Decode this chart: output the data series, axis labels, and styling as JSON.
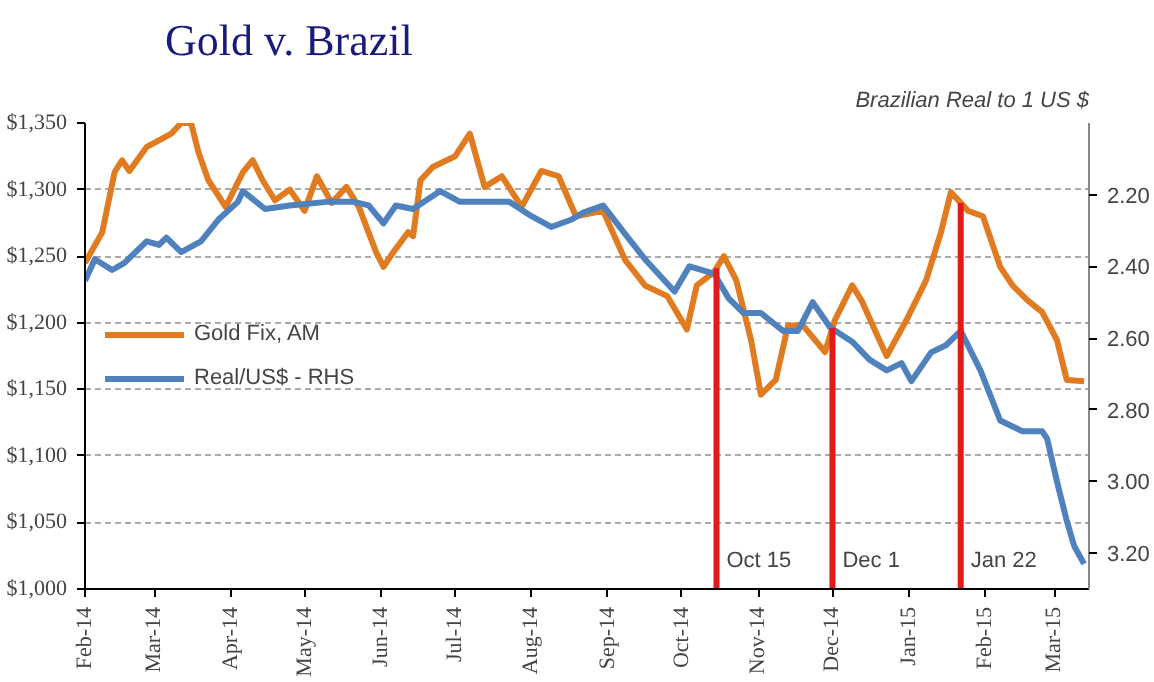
{
  "chart_data": {
    "type": "line",
    "title": "Gold v. Brazil",
    "y2label": "Brazilian Real to 1 US $",
    "series": [
      {
        "name": "Gold Fix, AM",
        "color": "#e07b1f",
        "x": [
          "2014-02-01",
          "2014-02-08",
          "2014-02-13",
          "2014-02-16",
          "2014-02-19",
          "2014-02-26",
          "2014-03-03",
          "2014-03-08",
          "2014-03-12",
          "2014-03-16",
          "2014-03-19",
          "2014-03-23",
          "2014-03-30",
          "2014-04-06",
          "2014-04-10",
          "2014-04-14",
          "2014-04-19",
          "2014-04-25",
          "2014-05-01",
          "2014-05-06",
          "2014-05-12",
          "2014-05-18",
          "2014-05-23",
          "2014-05-30",
          "2014-06-02",
          "2014-06-06",
          "2014-06-12",
          "2014-06-14",
          "2014-06-17",
          "2014-06-22",
          "2014-07-01",
          "2014-07-07",
          "2014-07-13",
          "2014-07-20",
          "2014-07-28",
          "2014-08-05",
          "2014-08-12",
          "2014-08-19",
          "2014-08-30",
          "2014-09-08",
          "2014-09-16",
          "2014-09-25",
          "2014-10-03",
          "2014-10-07",
          "2014-10-14",
          "2014-10-18",
          "2014-10-23",
          "2014-10-29",
          "2014-11-02",
          "2014-11-08",
          "2014-11-13",
          "2014-11-19",
          "2014-11-28",
          "2014-12-02",
          "2014-12-09",
          "2014-12-13",
          "2014-12-20",
          "2014-12-23",
          "2014-12-31",
          "2015-01-08",
          "2015-01-14",
          "2015-01-18",
          "2015-01-25",
          "2015-01-31",
          "2015-02-07",
          "2015-02-12",
          "2015-02-18",
          "2015-02-24",
          "2015-03-02",
          "2015-03-06",
          "2015-03-13"
        ],
        "values": [
          1245,
          1268,
          1313,
          1322,
          1314,
          1332,
          1337,
          1342,
          1350,
          1350,
          1328,
          1307,
          1287,
          1313,
          1322,
          1307,
          1292,
          1300,
          1284,
          1310,
          1290,
          1302,
          1287,
          1253,
          1242,
          1253,
          1268,
          1265,
          1307,
          1317,
          1325,
          1342,
          1302,
          1310,
          1287,
          1314,
          1310,
          1280,
          1284,
          1247,
          1228,
          1220,
          1195,
          1228,
          1238,
          1250,
          1232,
          1187,
          1146,
          1157,
          1198,
          1198,
          1178,
          1202,
          1228,
          1216,
          1187,
          1175,
          1202,
          1232,
          1268,
          1298,
          1284,
          1280,
          1242,
          1228,
          1217,
          1208,
          1187,
          1157,
          1156
        ]
      },
      {
        "name": "Real/US$ - RHS",
        "color": "#4f81bd",
        "axis": "y2",
        "x": [
          "2014-02-01",
          "2014-02-05",
          "2014-02-12",
          "2014-02-17",
          "2014-02-26",
          "2014-03-03",
          "2014-03-06",
          "2014-03-12",
          "2014-03-20",
          "2014-03-27",
          "2014-04-04",
          "2014-04-06",
          "2014-04-15",
          "2014-04-25",
          "2014-05-10",
          "2014-05-21",
          "2014-05-27",
          "2014-06-02",
          "2014-06-07",
          "2014-06-14",
          "2014-06-25",
          "2014-07-03",
          "2014-07-15",
          "2014-07-23",
          "2014-08-01",
          "2014-08-09",
          "2014-08-17",
          "2014-08-22",
          "2014-08-30",
          "2014-09-08",
          "2014-09-16",
          "2014-09-28",
          "2014-10-04",
          "2014-10-14",
          "2014-10-20",
          "2014-10-26",
          "2014-11-02",
          "2014-11-11",
          "2014-11-17",
          "2014-11-23",
          "2014-11-30",
          "2014-12-09",
          "2014-12-16",
          "2014-12-23",
          "2014-12-29",
          "2015-01-02",
          "2015-01-10",
          "2015-01-16",
          "2015-01-22",
          "2015-01-30",
          "2015-02-07",
          "2015-02-16",
          "2015-02-24",
          "2015-02-26",
          "2015-03-02",
          "2015-03-06",
          "2015-03-09",
          "2015-03-13"
        ],
        "values": [
          2.44,
          2.38,
          2.41,
          2.39,
          2.33,
          2.34,
          2.32,
          2.36,
          2.33,
          2.27,
          2.22,
          2.19,
          2.24,
          2.23,
          2.22,
          2.22,
          2.23,
          2.28,
          2.23,
          2.24,
          2.19,
          2.22,
          2.22,
          2.22,
          2.26,
          2.29,
          2.27,
          2.25,
          2.23,
          2.31,
          2.38,
          2.47,
          2.4,
          2.42,
          2.49,
          2.53,
          2.53,
          2.58,
          2.58,
          2.5,
          2.57,
          2.61,
          2.66,
          2.69,
          2.67,
          2.72,
          2.64,
          2.62,
          2.58,
          2.69,
          2.83,
          2.86,
          2.86,
          2.88,
          3.0,
          3.11,
          3.18,
          3.23
        ]
      }
    ],
    "xlim": [
      "2014-02-01",
      "2015-03-15"
    ],
    "xticks": [
      {
        "value": "2014-02-01",
        "label": "Feb-14"
      },
      {
        "value": "2014-03-01",
        "label": "Mar-14"
      },
      {
        "value": "2014-04-01",
        "label": "Apr-14"
      },
      {
        "value": "2014-05-01",
        "label": "May-14"
      },
      {
        "value": "2014-06-01",
        "label": "Jun-14"
      },
      {
        "value": "2014-07-01",
        "label": "Jul-14"
      },
      {
        "value": "2014-08-01",
        "label": "Aug-14"
      },
      {
        "value": "2014-09-01",
        "label": "Sep-14"
      },
      {
        "value": "2014-10-01",
        "label": "Oct-14"
      },
      {
        "value": "2014-11-01",
        "label": "Nov-14"
      },
      {
        "value": "2014-12-01",
        "label": "Dec-14"
      },
      {
        "value": "2015-01-01",
        "label": "Jan-15"
      },
      {
        "value": "2015-02-01",
        "label": "Feb-15"
      },
      {
        "value": "2015-03-01",
        "label": "Mar-15"
      }
    ],
    "ylim": [
      1000,
      1350
    ],
    "yticks": [
      {
        "value": 1000,
        "label": "$1,000"
      },
      {
        "value": 1050,
        "label": "$1,050"
      },
      {
        "value": 1100,
        "label": "$1,100"
      },
      {
        "value": 1150,
        "label": "$1,150"
      },
      {
        "value": 1200,
        "label": "$1,200"
      },
      {
        "value": 1250,
        "label": "$1,250"
      },
      {
        "value": 1300,
        "label": "$1,300"
      },
      {
        "value": 1350,
        "label": "$1,350"
      }
    ],
    "y2lim": [
      3.3,
      2.0
    ],
    "y2ticks": [
      {
        "value": 2.2,
        "label": "2.20"
      },
      {
        "value": 2.4,
        "label": "2.40"
      },
      {
        "value": 2.6,
        "label": "2.60"
      },
      {
        "value": 2.8,
        "label": "2.80"
      },
      {
        "value": 3.0,
        "label": "3.00"
      },
      {
        "value": 3.2,
        "label": "3.20"
      }
    ],
    "ref_lines": [
      {
        "axis": "x",
        "value": "2014-10-15",
        "label": "Oct 15",
        "color": "#e31a1c"
      },
      {
        "axis": "x",
        "value": "2014-12-01",
        "label": "Dec 1",
        "color": "#e31a1c"
      },
      {
        "axis": "x",
        "value": "2015-01-22",
        "label": "Jan 22",
        "color": "#e31a1c"
      }
    ],
    "grid": "y",
    "legend": "left",
    "line_style": "solid"
  }
}
